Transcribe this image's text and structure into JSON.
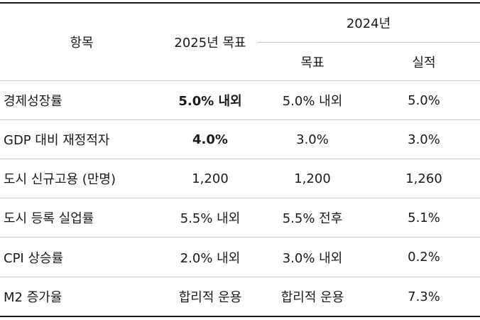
{
  "header": {
    "col_item": "항목",
    "col_2025": "2025년 목표",
    "col_2024": "2024년",
    "sub_target": "목표",
    "sub_actual": "실적"
  },
  "rows": [
    {
      "item": "경제성장률",
      "target_2025": "5.0% 내외",
      "target_2024": "5.0% 내외",
      "actual_2024": "5.0%"
    },
    {
      "item": "GDP 대비 재정적자",
      "target_2025": "4.0%",
      "target_2024": "3.0%",
      "actual_2024": "3.0%"
    },
    {
      "item": "도시 신규고용 (만명)",
      "target_2025": "1,200",
      "target_2024": "1,200",
      "actual_2024": "1,260"
    },
    {
      "item": "도시 등록 실업률",
      "target_2025": "5.5% 내외",
      "target_2024": "5.5% 전후",
      "actual_2024": "5.1%"
    },
    {
      "item": "CPI 상승률",
      "target_2025": "2.0% 내외",
      "target_2024": "3.0% 내외",
      "actual_2024": "0.2%"
    },
    {
      "item": "M2 증가율",
      "target_2025": "합리적 운용",
      "target_2024": "합리적 운용",
      "actual_2024": "7.3%"
    }
  ]
}
